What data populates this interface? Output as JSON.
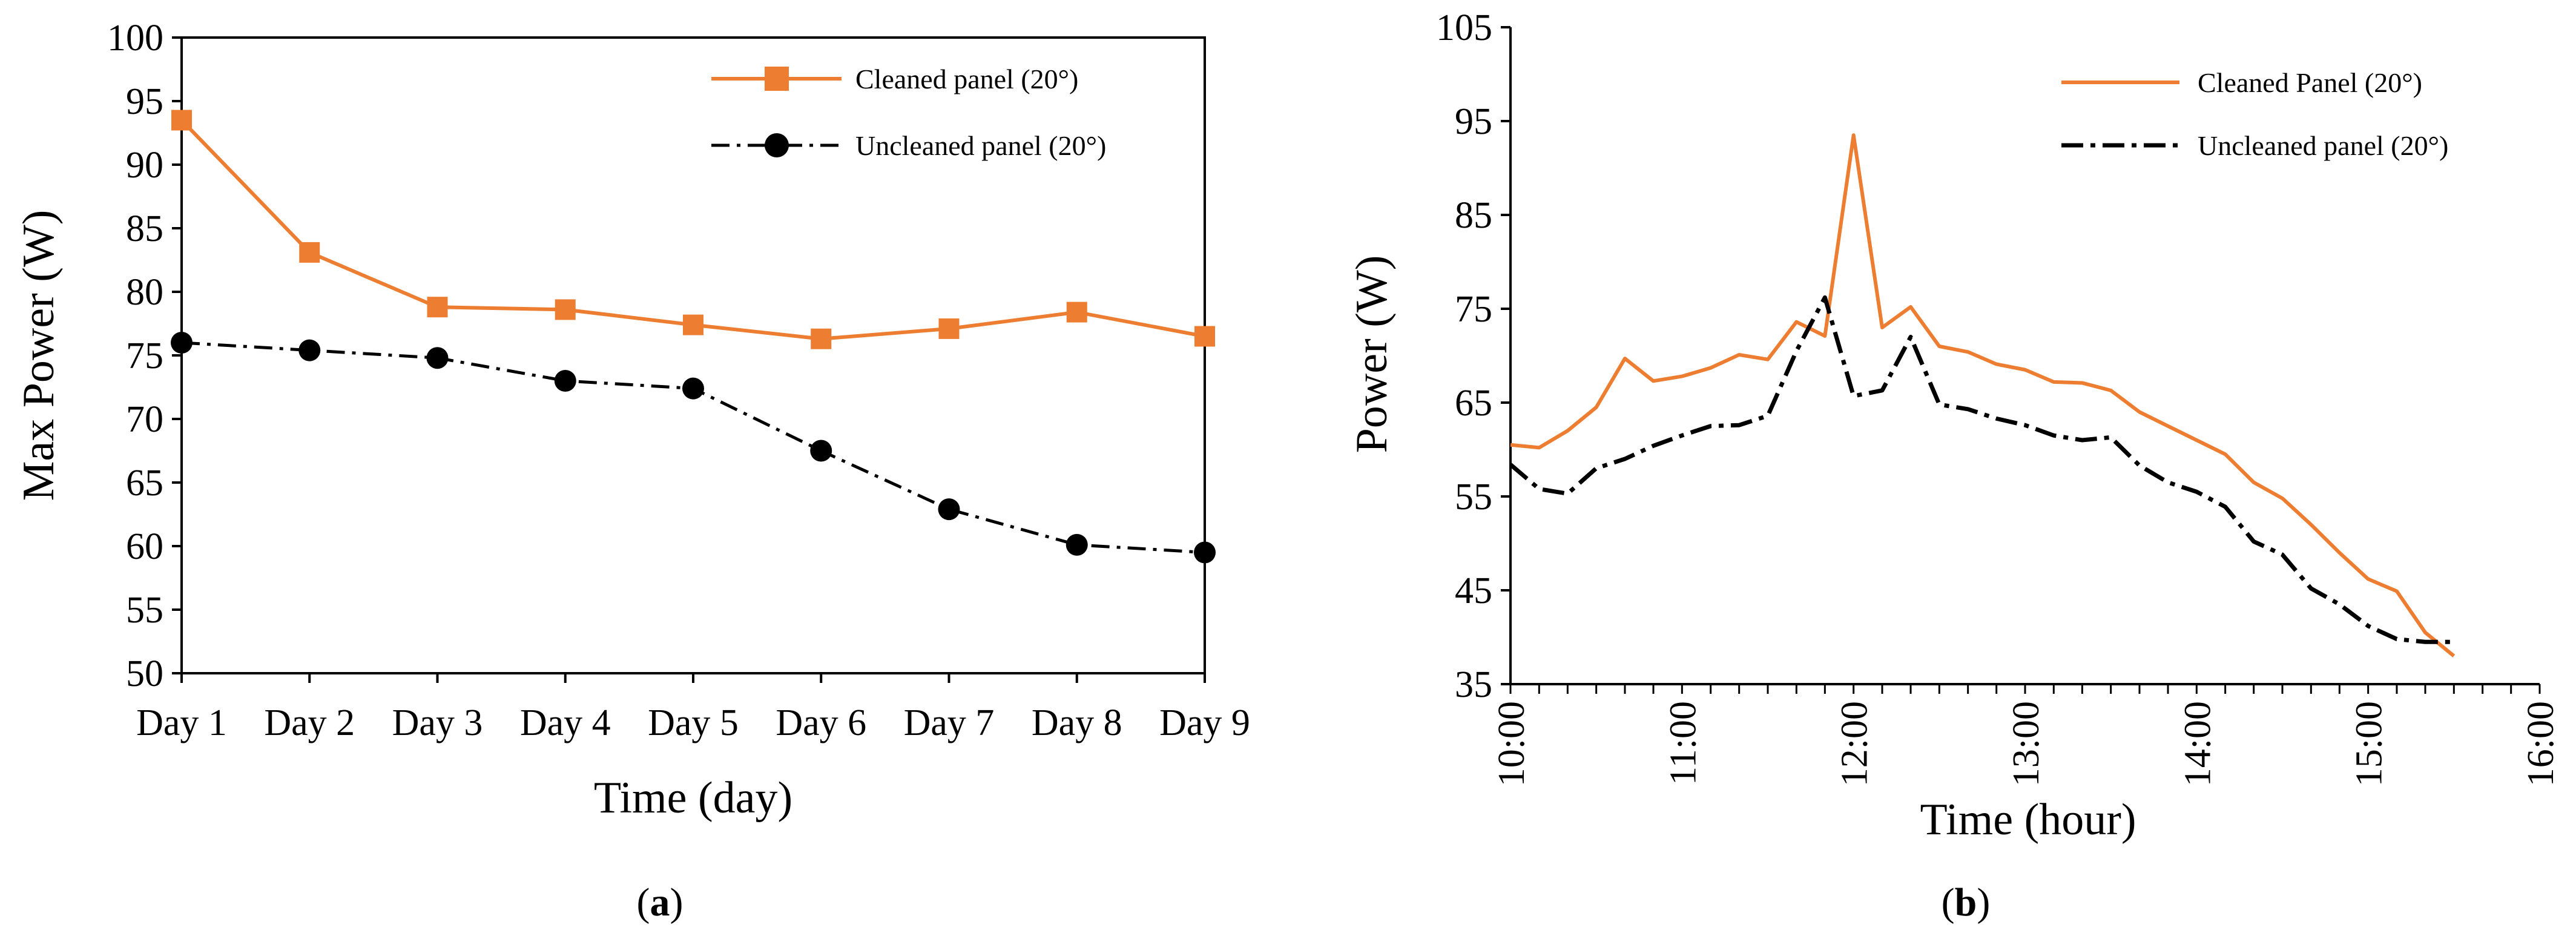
{
  "chart_data": [
    {
      "type": "line",
      "caption_letter": "a",
      "caption_open": "(",
      "caption_close": ")",
      "xlabel": "Time (day)",
      "ylabel": "Max Power (W)",
      "categories": [
        "Day 1",
        "Day 2",
        "Day 3",
        "Day 4",
        "Day 5",
        "Day 6",
        "Day 7",
        "Day 8",
        "Day 9"
      ],
      "ylim": [
        50,
        100
      ],
      "yticks": [
        50,
        55,
        60,
        65,
        70,
        75,
        80,
        85,
        90,
        95,
        100
      ],
      "legend_position": "top-right",
      "series": [
        {
          "name": "Cleaned panel (20°)",
          "color": "#ED7D31",
          "marker": "square",
          "dash": "solid",
          "values": [
            93.5,
            83.1,
            78.8,
            78.6,
            77.4,
            76.3,
            77.1,
            78.4,
            76.5
          ]
        },
        {
          "name": "Uncleaned panel (20°)",
          "color": "#000000",
          "marker": "circle",
          "dash": "dash-dot",
          "values": [
            76.0,
            75.4,
            74.8,
            73.0,
            72.4,
            67.5,
            62.9,
            60.1,
            59.5
          ]
        }
      ]
    },
    {
      "type": "line",
      "caption_letter": "b",
      "caption_open": "(",
      "caption_close": ")",
      "xlabel": "Time (hour)",
      "ylabel": "Power (W)",
      "xlim": [
        10,
        16
      ],
      "xticks": [
        10,
        11,
        12,
        13,
        14,
        15,
        16
      ],
      "xtick_labels": [
        "10:00",
        "11:00",
        "12:00",
        "13:00",
        "14:00",
        "15:00",
        "16:00"
      ],
      "ylim": [
        35,
        105
      ],
      "yticks": [
        35,
        45,
        55,
        65,
        75,
        85,
        95,
        105
      ],
      "legend_position": "top-right",
      "x": [
        10.0,
        10.167,
        10.333,
        10.5,
        10.667,
        10.833,
        11.0,
        11.167,
        11.333,
        11.5,
        11.667,
        11.833,
        12.0,
        12.167,
        12.333,
        12.5,
        12.667,
        12.833,
        13.0,
        13.167,
        13.333,
        13.5,
        13.667,
        13.833,
        14.0,
        14.167,
        14.333,
        14.5,
        14.667,
        14.833,
        15.0,
        15.167,
        15.333,
        15.5,
        15.667,
        15.833,
        16.0
      ],
      "series": [
        {
          "name": "Cleaned Panel (20°)",
          "color": "#ED7D31",
          "dash": "solid",
          "values": [
            60.5,
            60.2,
            62.0,
            64.5,
            69.7,
            67.3,
            67.8,
            68.7,
            70.1,
            69.6,
            73.6,
            72.1,
            93.5,
            73.0,
            75.2,
            71.0,
            70.4,
            69.1,
            68.5,
            67.2,
            67.1,
            66.3,
            64.0,
            62.5,
            61.0,
            59.5,
            56.5,
            54.8,
            52.0,
            49.0,
            46.2,
            44.9,
            40.5,
            38.0,
            null,
            null,
            null
          ]
        },
        {
          "name": "Uncleaned panel (20°)",
          "color": "#000000",
          "dash": "dash-dot",
          "values": [
            58.4,
            55.8,
            55.3,
            58.0,
            59.0,
            60.4,
            61.5,
            62.5,
            62.6,
            63.6,
            70.5,
            76.2,
            65.7,
            66.3,
            72.0,
            64.8,
            64.3,
            63.3,
            62.6,
            61.5,
            61.0,
            61.3,
            58.3,
            56.5,
            55.5,
            53.9,
            50.2,
            48.8,
            45.2,
            43.5,
            41.2,
            39.8,
            39.5,
            39.5,
            null,
            null,
            null
          ]
        }
      ]
    }
  ]
}
